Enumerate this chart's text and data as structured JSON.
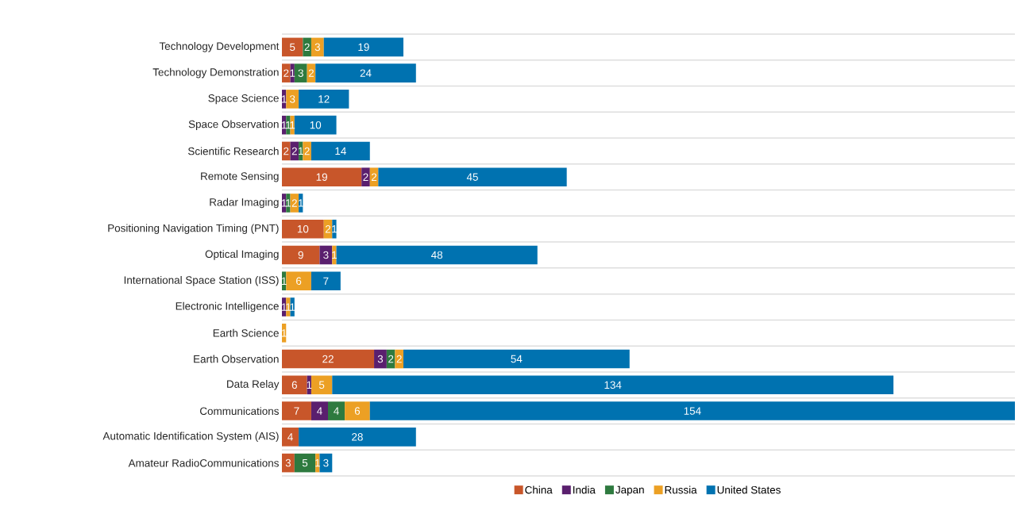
{
  "chart_data": {
    "type": "bar",
    "orientation": "horizontal",
    "stacked": true,
    "data_labels": true,
    "grid": "y",
    "legend": "bottom",
    "tick_labels": "y",
    "xlim": [
      0,
      175
    ],
    "categories": [
      "Technology Development",
      "Technology Demonstration",
      "Space Science",
      "Space Observation",
      "Scientific Research",
      "Remote Sensing",
      "Radar Imaging",
      "Positioning Navigation Timing (PNT)",
      "Optical Imaging",
      "International Space Station (ISS)",
      "Electronic Intelligence",
      "Earth Science",
      "Earth Observation",
      "Data Relay",
      "Communications",
      "Automatic Identification System (AIS)",
      "Amateur RadioCommunications"
    ],
    "series": [
      {
        "name": "China",
        "color": "#c8562a",
        "values": [
          5,
          2,
          null,
          null,
          2,
          19,
          null,
          10,
          9,
          null,
          null,
          null,
          22,
          6,
          7,
          4,
          3
        ]
      },
      {
        "name": "India",
        "color": "#5a1f6e",
        "values": [
          null,
          1,
          1,
          1,
          2,
          2,
          1,
          null,
          3,
          null,
          1,
          null,
          3,
          1,
          4,
          null,
          null
        ]
      },
      {
        "name": "Japan",
        "color": "#2e7a3f",
        "values": [
          2,
          3,
          null,
          1,
          1,
          null,
          1,
          null,
          null,
          1,
          null,
          null,
          2,
          null,
          4,
          null,
          5
        ]
      },
      {
        "name": "Russia",
        "color": "#eca024",
        "values": [
          3,
          2,
          3,
          1,
          2,
          2,
          2,
          2,
          1,
          6,
          1,
          1,
          2,
          5,
          6,
          null,
          1
        ]
      },
      {
        "name": "United States",
        "color": "#0072b0",
        "values": [
          19,
          24,
          12,
          10,
          14,
          45,
          1,
          1,
          48,
          7,
          1,
          null,
          54,
          134,
          154,
          28,
          3
        ]
      }
    ]
  }
}
